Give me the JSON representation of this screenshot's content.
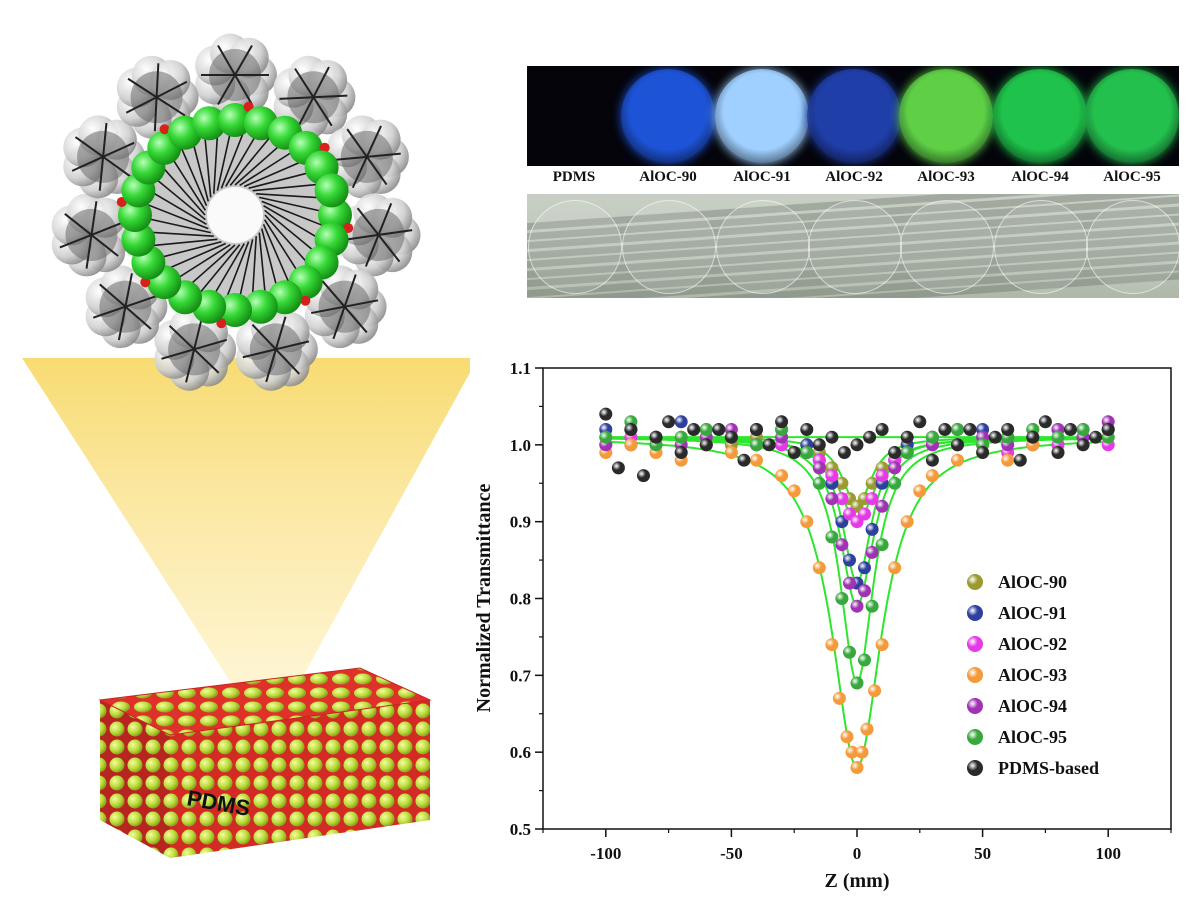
{
  "illustration": {
    "block_label": "PDMS",
    "colors": {
      "cluster_green": "#2fd12f",
      "matrix_red": "#e0302a",
      "beads": "#c9e043",
      "cone": "#f9e07a"
    }
  },
  "photo_panel": {
    "samples": [
      {
        "label": "PDMS",
        "glow": "#04040a"
      },
      {
        "label": "AlOC-90",
        "glow": "#1d53d6"
      },
      {
        "label": "AlOC-91",
        "glow": "#9fd0ff"
      },
      {
        "label": "AlOC-92",
        "glow": "#1f3ea8"
      },
      {
        "label": "AlOC-93",
        "glow": "#5fd046"
      },
      {
        "label": "AlOC-94",
        "glow": "#1fc24a"
      },
      {
        "label": "AlOC-95",
        "glow": "#24c04e"
      }
    ]
  },
  "chart_data": {
    "type": "scatter",
    "title": "",
    "xlabel": "Z (mm)",
    "ylabel": "Normalized Transmittance",
    "xlim": [
      -125,
      125
    ],
    "ylim": [
      0.5,
      1.1
    ],
    "xticks": [
      -100,
      -50,
      0,
      50,
      100
    ],
    "yticks": [
      0.5,
      0.6,
      0.7,
      0.8,
      0.9,
      1.0,
      1.1
    ],
    "xtick_labels": [
      "-100",
      "-50",
      "0",
      "50",
      "100"
    ],
    "ytick_labels": [
      "0.5",
      "0.6",
      "0.7",
      "0.8",
      "0.9",
      "1.0",
      "1.1"
    ],
    "grid": false,
    "legend_position": "bottom-right",
    "fit_color": "#2ee62e",
    "series": [
      {
        "name": "AlOC-90",
        "color": "#9a9a30",
        "baseline": 1.01,
        "dip_min": 0.92,
        "width": 7,
        "x": [
          -100,
          -90,
          -80,
          -70,
          -60,
          -50,
          -40,
          -30,
          -20,
          -15,
          -10,
          -6,
          -3,
          0,
          3,
          6,
          10,
          15,
          20,
          30,
          40,
          50,
          60,
          70,
          80,
          90,
          100
        ],
        "y": [
          1.01,
          1.02,
          1.0,
          1.01,
          1.02,
          1.0,
          1.01,
          1.02,
          1.0,
          0.99,
          0.97,
          0.95,
          0.93,
          0.92,
          0.93,
          0.95,
          0.97,
          0.99,
          1.0,
          1.01,
          1.02,
          1.0,
          1.01,
          1.02,
          1.0,
          1.01,
          1.02
        ]
      },
      {
        "name": "AlOC-91",
        "color": "#2e3f9e",
        "baseline": 1.01,
        "dip_min": 0.82,
        "width": 7,
        "x": [
          -100,
          -90,
          -80,
          -70,
          -60,
          -50,
          -40,
          -30,
          -20,
          -15,
          -10,
          -6,
          -3,
          0,
          3,
          6,
          10,
          15,
          20,
          30,
          40,
          50,
          60,
          70,
          80,
          90,
          100
        ],
        "y": [
          1.02,
          1.0,
          1.01,
          1.03,
          1.0,
          1.01,
          1.02,
          1.0,
          1.0,
          0.98,
          0.95,
          0.9,
          0.85,
          0.82,
          0.84,
          0.89,
          0.95,
          0.98,
          1.0,
          1.01,
          1.0,
          1.02,
          1.01,
          1.0,
          1.02,
          1.01,
          1.02
        ]
      },
      {
        "name": "AlOC-92",
        "color": "#e53ae5",
        "baseline": 1.01,
        "dip_min": 0.9,
        "width": 9,
        "x": [
          -100,
          -90,
          -80,
          -70,
          -60,
          -50,
          -40,
          -30,
          -20,
          -15,
          -10,
          -6,
          -3,
          0,
          3,
          6,
          10,
          15,
          20,
          30,
          40,
          50,
          60,
          70,
          80,
          90,
          100
        ],
        "y": [
          1.0,
          1.01,
          1.0,
          0.99,
          1.0,
          1.01,
          1.0,
          1.0,
          0.99,
          0.98,
          0.96,
          0.93,
          0.91,
          0.9,
          0.91,
          0.93,
          0.96,
          0.98,
          0.99,
          1.0,
          1.0,
          1.0,
          0.99,
          1.0,
          1.0,
          1.02,
          1.0
        ]
      },
      {
        "name": "AlOC-93",
        "color": "#f59a3a",
        "baseline": 1.01,
        "dip_min": 0.58,
        "width": 12,
        "x": [
          -100,
          -90,
          -80,
          -70,
          -60,
          -50,
          -40,
          -30,
          -25,
          -20,
          -15,
          -10,
          -7,
          -4,
          -2,
          0,
          2,
          4,
          7,
          10,
          15,
          20,
          25,
          30,
          40,
          50,
          60,
          70,
          80,
          90,
          100
        ],
        "y": [
          0.99,
          1.0,
          0.99,
          0.98,
          1.0,
          0.99,
          0.98,
          0.96,
          0.94,
          0.9,
          0.84,
          0.74,
          0.67,
          0.62,
          0.6,
          0.58,
          0.6,
          0.63,
          0.68,
          0.74,
          0.84,
          0.9,
          0.94,
          0.96,
          0.98,
          0.99,
          0.98,
          1.0,
          0.99,
          1.0,
          1.01
        ]
      },
      {
        "name": "AlOC-94",
        "color": "#a032b4",
        "baseline": 1.01,
        "dip_min": 0.79,
        "width": 8,
        "x": [
          -100,
          -90,
          -80,
          -70,
          -60,
          -50,
          -40,
          -30,
          -20,
          -15,
          -10,
          -6,
          -3,
          0,
          3,
          6,
          10,
          15,
          20,
          30,
          40,
          50,
          60,
          70,
          80,
          90,
          100
        ],
        "y": [
          1.0,
          1.02,
          1.01,
          1.0,
          1.01,
          1.02,
          1.0,
          1.01,
          0.99,
          0.97,
          0.93,
          0.87,
          0.82,
          0.79,
          0.81,
          0.86,
          0.92,
          0.97,
          0.99,
          1.0,
          1.02,
          1.01,
          1.0,
          1.01,
          1.02,
          1.01,
          1.03
        ]
      },
      {
        "name": "AlOC-95",
        "color": "#38a83e",
        "baseline": 1.01,
        "dip_min": 0.69,
        "width": 8,
        "x": [
          -100,
          -90,
          -80,
          -70,
          -60,
          -50,
          -40,
          -30,
          -20,
          -15,
          -10,
          -6,
          -3,
          0,
          3,
          6,
          10,
          15,
          20,
          30,
          40,
          50,
          60,
          70,
          80,
          90,
          100
        ],
        "y": [
          1.01,
          1.03,
          1.0,
          1.01,
          1.02,
          1.01,
          1.0,
          1.02,
          0.99,
          0.95,
          0.88,
          0.8,
          0.73,
          0.69,
          0.72,
          0.79,
          0.87,
          0.95,
          0.99,
          1.01,
          1.02,
          1.0,
          1.01,
          1.02,
          1.01,
          1.02,
          1.01
        ]
      },
      {
        "name": "PDMS-based",
        "color": "#2a2a2a",
        "baseline": 1.01,
        "dip_min": 1.0,
        "width": 5,
        "x": [
          -100,
          -95,
          -90,
          -85,
          -80,
          -75,
          -70,
          -65,
          -60,
          -55,
          -50,
          -45,
          -40,
          -35,
          -30,
          -25,
          -20,
          -15,
          -10,
          -5,
          0,
          5,
          10,
          15,
          20,
          25,
          30,
          35,
          40,
          45,
          50,
          55,
          60,
          65,
          70,
          75,
          80,
          85,
          90,
          95,
          100
        ],
        "y": [
          1.04,
          0.97,
          1.02,
          0.96,
          1.01,
          1.03,
          0.99,
          1.02,
          1.0,
          1.02,
          1.01,
          0.98,
          1.02,
          1.0,
          1.03,
          0.99,
          1.02,
          1.0,
          1.01,
          0.99,
          1.0,
          1.01,
          1.02,
          0.99,
          1.01,
          1.03,
          0.98,
          1.02,
          1.0,
          1.02,
          0.99,
          1.01,
          1.02,
          0.98,
          1.01,
          1.03,
          0.99,
          1.02,
          1.0,
          1.01,
          1.02
        ]
      }
    ]
  }
}
